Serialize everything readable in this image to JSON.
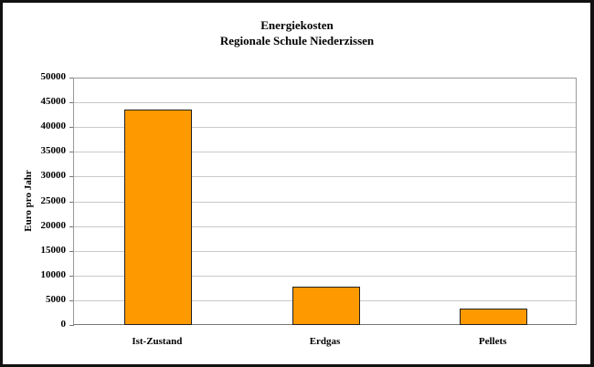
{
  "chart_data": {
    "type": "bar",
    "title": "Energiekosten",
    "subtitle": "Regionale Schule Niederzissen",
    "xlabel": "",
    "ylabel": "Euro pro Jahr",
    "categories": [
      "Ist-Zustand",
      "Erdgas",
      "Pellets"
    ],
    "values": [
      43500,
      7700,
      3300
    ],
    "ylim": [
      0,
      50000
    ],
    "yticks": [
      "0",
      "5000",
      "10000",
      "15000",
      "20000",
      "25000",
      "30000",
      "35000",
      "40000",
      "45000",
      "50000"
    ],
    "grid": true,
    "legend": null,
    "bar_color": "#FF9900",
    "bar_border_color": "#222222"
  }
}
